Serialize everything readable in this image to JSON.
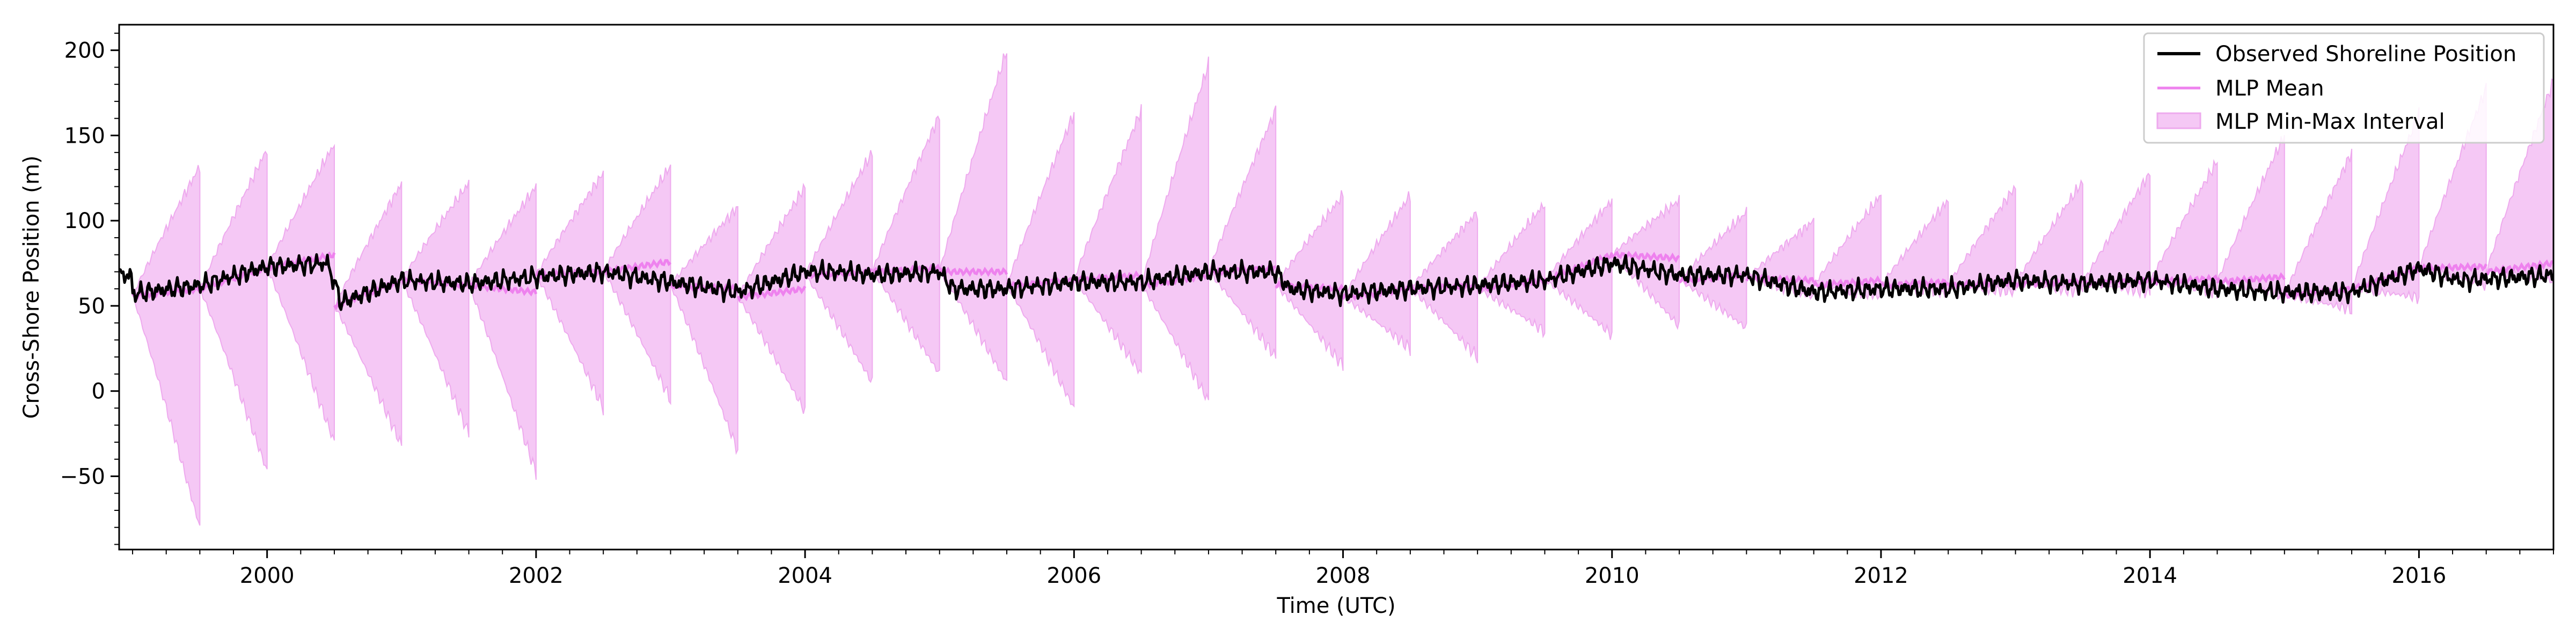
{
  "chart_data": {
    "type": "line",
    "title": "",
    "xlabel": "Time (UTC)",
    "ylabel": "Cross-Shore Position (m)",
    "xlim": [
      1998.9,
      2017.0
    ],
    "ylim": [
      -93,
      215
    ],
    "x_ticks": [
      2000,
      2002,
      2004,
      2006,
      2008,
      2010,
      2012,
      2014,
      2016
    ],
    "x_tick_labels": [
      "2000",
      "2002",
      "2004",
      "2006",
      "2008",
      "2010",
      "2012",
      "2014",
      "2016"
    ],
    "y_ticks": [
      -50,
      0,
      50,
      100,
      150,
      200
    ],
    "y_tick_labels": [
      "−50",
      "0",
      "50",
      "100",
      "150",
      "200"
    ],
    "legend_position": "top-right",
    "legend": [
      "Observed Shoreline Position",
      "MLP Mean",
      "MLP Min-Max Interval"
    ],
    "colors": {
      "observed": "#000000",
      "mean": "#ee82ee",
      "band": "#f5c8f5",
      "band_edge": "#eeaaee"
    },
    "forecast_windows": [
      {
        "start": 1999.0,
        "end": 1999.5,
        "mean_start": 56,
        "mean_end": 60,
        "min_end": -80,
        "max_end": 132
      },
      {
        "start": 1999.5,
        "end": 2000.0,
        "mean_start": 60,
        "mean_end": 72,
        "min_end": -47,
        "max_end": 142
      },
      {
        "start": 2000.0,
        "end": 2000.5,
        "mean_start": 72,
        "mean_end": 80,
        "min_end": -30,
        "max_end": 145
      },
      {
        "start": 2000.5,
        "end": 2001.0,
        "mean_start": 50,
        "mean_end": 65,
        "min_end": -32,
        "max_end": 122
      },
      {
        "start": 2001.0,
        "end": 2001.5,
        "mean_start": 65,
        "mean_end": 62,
        "min_end": -25,
        "max_end": 122
      },
      {
        "start": 2001.5,
        "end": 2002.0,
        "mean_start": 62,
        "mean_end": 58,
        "min_end": -48,
        "max_end": 120
      },
      {
        "start": 2002.0,
        "end": 2002.5,
        "mean_start": 68,
        "mean_end": 70,
        "min_end": -10,
        "max_end": 128
      },
      {
        "start": 2002.5,
        "end": 2003.0,
        "mean_start": 70,
        "mean_end": 76,
        "min_end": -5,
        "max_end": 132
      },
      {
        "start": 2003.0,
        "end": 2003.5,
        "mean_start": 62,
        "mean_end": 60,
        "min_end": -35,
        "max_end": 108
      },
      {
        "start": 2003.5,
        "end": 2004.0,
        "mean_start": 55,
        "mean_end": 60,
        "min_end": -12,
        "max_end": 120
      },
      {
        "start": 2004.0,
        "end": 2004.5,
        "mean_start": 68,
        "mean_end": 70,
        "min_end": 5,
        "max_end": 140
      },
      {
        "start": 2004.5,
        "end": 2005.0,
        "mean_start": 70,
        "mean_end": 72,
        "min_end": 10,
        "max_end": 162
      },
      {
        "start": 2005.0,
        "end": 2005.5,
        "mean_start": 70,
        "mean_end": 70,
        "min_end": 5,
        "max_end": 200
      },
      {
        "start": 2005.5,
        "end": 2006.0,
        "mean_start": 62,
        "mean_end": 65,
        "min_end": -10,
        "max_end": 163
      },
      {
        "start": 2006.0,
        "end": 2006.5,
        "mean_start": 65,
        "mean_end": 68,
        "min_end": 10,
        "max_end": 165
      },
      {
        "start": 2006.5,
        "end": 2007.0,
        "mean_start": 62,
        "mean_end": 68,
        "min_end": -6,
        "max_end": 192
      },
      {
        "start": 2007.0,
        "end": 2007.5,
        "mean_start": 70,
        "mean_end": 72,
        "min_end": 20,
        "max_end": 165
      },
      {
        "start": 2007.5,
        "end": 2008.0,
        "mean_start": 62,
        "mean_end": 60,
        "min_end": 15,
        "max_end": 115
      },
      {
        "start": 2008.0,
        "end": 2008.5,
        "mean_start": 55,
        "mean_end": 60,
        "min_end": 25,
        "max_end": 115
      },
      {
        "start": 2008.5,
        "end": 2009.0,
        "mean_start": 60,
        "mean_end": 62,
        "min_end": 20,
        "max_end": 105
      },
      {
        "start": 2009.0,
        "end": 2009.5,
        "mean_start": 60,
        "mean_end": 65,
        "min_end": 35,
        "max_end": 110
      },
      {
        "start": 2009.5,
        "end": 2010.0,
        "mean_start": 65,
        "mean_end": 80,
        "min_end": 33,
        "max_end": 112
      },
      {
        "start": 2010.0,
        "end": 2010.5,
        "mean_start": 80,
        "mean_end": 78,
        "min_end": 38,
        "max_end": 112
      },
      {
        "start": 2010.5,
        "end": 2011.0,
        "mean_start": 65,
        "mean_end": 68,
        "min_end": 37,
        "max_end": 105
      },
      {
        "start": 2011.0,
        "end": 2011.5,
        "mean_start": 66,
        "mean_end": 65,
        "min_end": 55,
        "max_end": 100
      },
      {
        "start": 2011.5,
        "end": 2012.0,
        "mean_start": 62,
        "mean_end": 65,
        "min_end": 55,
        "max_end": 115
      },
      {
        "start": 2012.0,
        "end": 2012.5,
        "mean_start": 62,
        "mean_end": 64,
        "min_end": 57,
        "max_end": 112
      },
      {
        "start": 2012.5,
        "end": 2013.0,
        "mean_start": 62,
        "mean_end": 64,
        "min_end": 58,
        "max_end": 120
      },
      {
        "start": 2013.0,
        "end": 2013.5,
        "mean_start": 63,
        "mean_end": 64,
        "min_end": 58,
        "max_end": 123
      },
      {
        "start": 2013.5,
        "end": 2014.0,
        "mean_start": 63,
        "mean_end": 65,
        "min_end": 58,
        "max_end": 128
      },
      {
        "start": 2014.0,
        "end": 2014.5,
        "mean_start": 64,
        "mean_end": 66,
        "min_end": 58,
        "max_end": 135
      },
      {
        "start": 2014.5,
        "end": 2015.0,
        "mean_start": 64,
        "mean_end": 67,
        "min_end": 56,
        "max_end": 150
      },
      {
        "start": 2015.0,
        "end": 2015.5,
        "mean_start": 56,
        "mean_end": 60,
        "min_end": 48,
        "max_end": 140
      },
      {
        "start": 2015.5,
        "end": 2016.0,
        "mean_start": 60,
        "mean_end": 72,
        "min_end": 55,
        "max_end": 163
      },
      {
        "start": 2016.0,
        "end": 2016.5,
        "mean_start": 72,
        "mean_end": 73,
        "min_end": 62,
        "max_end": 178
      },
      {
        "start": 2016.5,
        "end": 2017.0,
        "mean_start": 70,
        "mean_end": 75,
        "min_end": 65,
        "max_end": 182
      }
    ],
    "observed_anchors": [
      [
        1999.0,
        57
      ],
      [
        1999.5,
        62
      ],
      [
        2000.0,
        73
      ],
      [
        2000.45,
        75
      ],
      [
        2000.55,
        52
      ],
      [
        2001.0,
        65
      ],
      [
        2001.5,
        63
      ],
      [
        2002.0,
        67
      ],
      [
        2002.5,
        70
      ],
      [
        2003.0,
        64
      ],
      [
        2003.5,
        58
      ],
      [
        2004.0,
        70
      ],
      [
        2004.3,
        70
      ],
      [
        2004.5,
        68
      ],
      [
        2005.0,
        70
      ],
      [
        2005.1,
        60
      ],
      [
        2005.5,
        60
      ],
      [
        2006.0,
        64
      ],
      [
        2006.5,
        64
      ],
      [
        2007.0,
        70
      ],
      [
        2007.5,
        70
      ],
      [
        2007.6,
        60
      ],
      [
        2008.0,
        57
      ],
      [
        2008.5,
        60
      ],
      [
        2009.0,
        62
      ],
      [
        2009.5,
        65
      ],
      [
        2010.0,
        75
      ],
      [
        2010.5,
        68
      ],
      [
        2011.0,
        68
      ],
      [
        2011.5,
        58
      ],
      [
        2012.0,
        60
      ],
      [
        2012.5,
        60
      ],
      [
        2013.0,
        65
      ],
      [
        2013.5,
        63
      ],
      [
        2014.0,
        65
      ],
      [
        2014.5,
        60
      ],
      [
        2015.0,
        58
      ],
      [
        2015.5,
        58
      ],
      [
        2016.0,
        72
      ],
      [
        2016.3,
        65
      ],
      [
        2017.0,
        68
      ]
    ]
  }
}
